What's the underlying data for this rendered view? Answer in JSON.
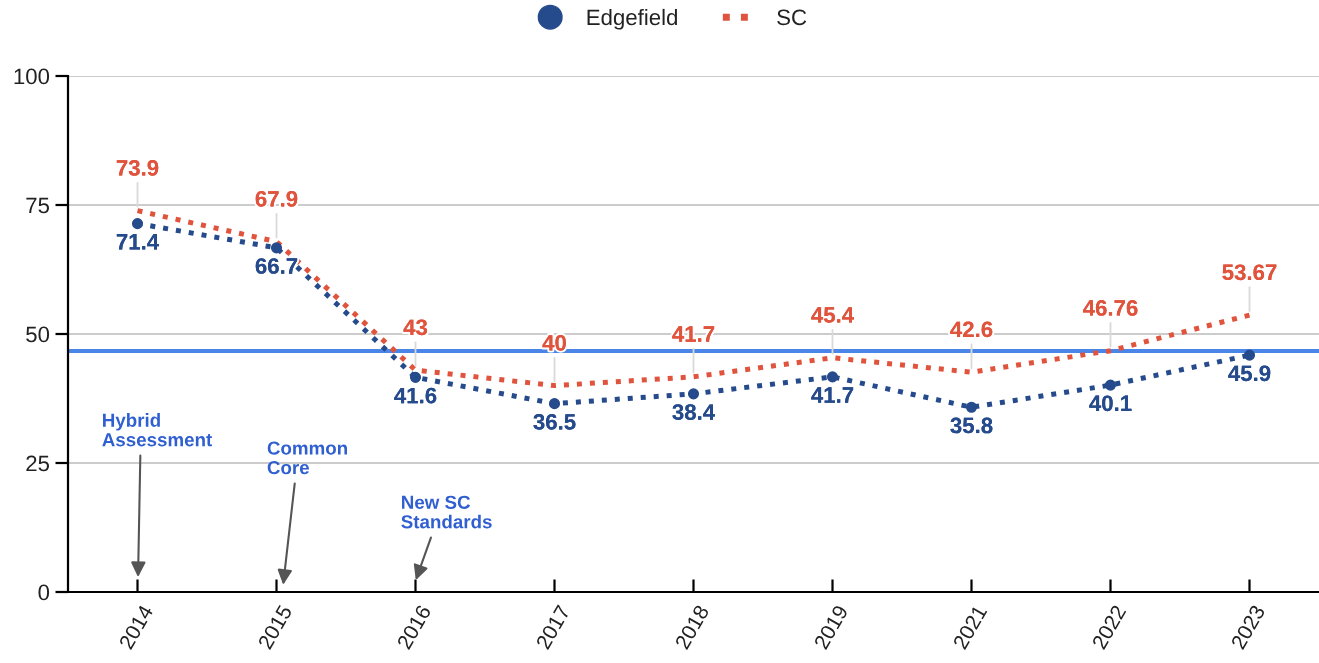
{
  "chart_data": {
    "type": "line",
    "categories": [
      "2014",
      "2015",
      "2016",
      "2017",
      "2018",
      "2019",
      "2021",
      "2022",
      "2023"
    ],
    "series": [
      {
        "name": "Edgefield",
        "color": "#264b8c",
        "values": [
          71.4,
          66.7,
          41.6,
          36.5,
          38.4,
          41.7,
          35.8,
          40.1,
          45.9
        ],
        "marker": "circle",
        "line_style": "dotted"
      },
      {
        "name": "SC",
        "color": "#e0533d",
        "values": [
          73.9,
          67.9,
          43,
          40,
          41.7,
          45.4,
          42.6,
          46.76,
          53.67
        ],
        "marker": "none",
        "line_style": "dotted"
      }
    ],
    "ylim": [
      0,
      100
    ],
    "yticks": [
      0,
      25,
      50,
      75,
      100
    ],
    "grid": "y",
    "legend": "top",
    "data_labels": true,
    "ref_lines": [
      {
        "axis": "y",
        "value": 46.7,
        "color": "#4a86e8",
        "line_style": "solid"
      }
    ],
    "annotations": [
      "Hybrid\nAssessment",
      "Common\nCore",
      "New SC\nStandards"
    ]
  }
}
